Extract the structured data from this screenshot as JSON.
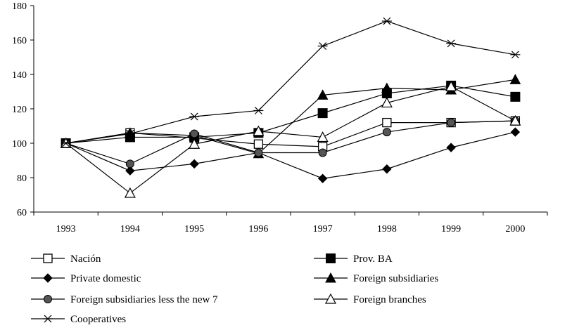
{
  "chart_data": {
    "type": "line",
    "title": "",
    "xlabel": "",
    "ylabel": "",
    "x": [
      "1993",
      "1994",
      "1995",
      "1996",
      "1997",
      "1998",
      "1999",
      "2000"
    ],
    "ylim": [
      60,
      180
    ],
    "yticks": [
      60,
      80,
      100,
      120,
      140,
      160,
      180
    ],
    "grid": false,
    "legend_position": "bottom",
    "series": [
      {
        "name": "Nación",
        "marker": "open-square",
        "color": "#000000",
        "values": [
          100,
          106,
          103,
          99.5,
          98,
          112,
          112,
          113
        ]
      },
      {
        "name": "Prov. BA",
        "marker": "filled-square",
        "color": "#000000",
        "values": [
          100,
          103.5,
          103.5,
          106,
          117.5,
          129,
          133.5,
          127
        ]
      },
      {
        "name": "Private domestic",
        "marker": "filled-diamond",
        "color": "#000000",
        "values": [
          100,
          84,
          88,
          94.5,
          79.5,
          85,
          97.5,
          106.5
        ]
      },
      {
        "name": "Foreign subsidiaries",
        "marker": "filled-triangle",
        "color": "#000000",
        "values": [
          100,
          106,
          104.5,
          94,
          128,
          132,
          131,
          137
        ]
      },
      {
        "name": "Foreign subsidiaries less the new 7",
        "marker": "gray-circle",
        "color": "#000000",
        "values": [
          100,
          88,
          105.5,
          94.5,
          94.5,
          106.5,
          112,
          113
        ]
      },
      {
        "name": "Foreign branches",
        "marker": "open-triangle",
        "color": "#000000",
        "values": [
          100,
          71,
          99.5,
          107,
          103.5,
          123.5,
          133,
          113
        ]
      },
      {
        "name": "Cooperatives",
        "marker": "star",
        "color": "#000000",
        "values": [
          100,
          105.5,
          115.5,
          119,
          156.5,
          171,
          158,
          151.5
        ]
      }
    ]
  }
}
